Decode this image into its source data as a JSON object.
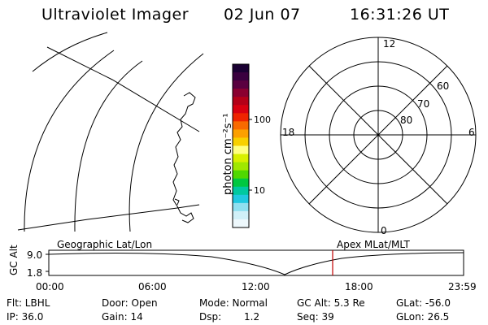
{
  "header": {
    "title": "Ultraviolet Imager",
    "date": "02 Jun 07",
    "time": "16:31:26 UT"
  },
  "colorbar": {
    "unit_label": "photon cm⁻²s⁻¹",
    "tick_labels": [
      "100",
      "10"
    ],
    "colors": [
      "#1a0033",
      "#3a003f",
      "#5a0040",
      "#8a0030",
      "#b40018",
      "#d80010",
      "#ee2400",
      "#f86a00",
      "#fca000",
      "#f8d000",
      "#ffff80",
      "#d8f000",
      "#a0e800",
      "#50d800",
      "#00c840",
      "#00c8a0",
      "#20c8e0",
      "#90e0f0",
      "#d0f0f8",
      "#eef8fc"
    ]
  },
  "polar_plot": {
    "clock_labels": [
      "12",
      "6",
      "0",
      "18"
    ],
    "lat_labels": [
      "60",
      "70",
      "80"
    ]
  },
  "timeline": {
    "axis_title": "GC Alt",
    "y_ticks": [
      "9.0",
      "1.8"
    ],
    "left_label": "Geographic Lat/Lon",
    "right_label": "Apex MLat/MLT",
    "x_ticks": [
      "00:00",
      "06:00",
      "12:00",
      "18:00",
      "23:59"
    ],
    "marker_color": "#c00000"
  },
  "status": {
    "flt": "Flt: LBHL",
    "ip": "IP: 36.0",
    "door": "Door: Open",
    "gain": "Gain: 14",
    "mode": "Mode: Normal",
    "dsp_label": "Dsp:",
    "dsp_value": "1.2",
    "gc_alt": "GC Alt: 5.3 Re",
    "seq": "Seq: 39",
    "glat": "GLat: -56.0",
    "glon": "GLon: 26.5"
  }
}
